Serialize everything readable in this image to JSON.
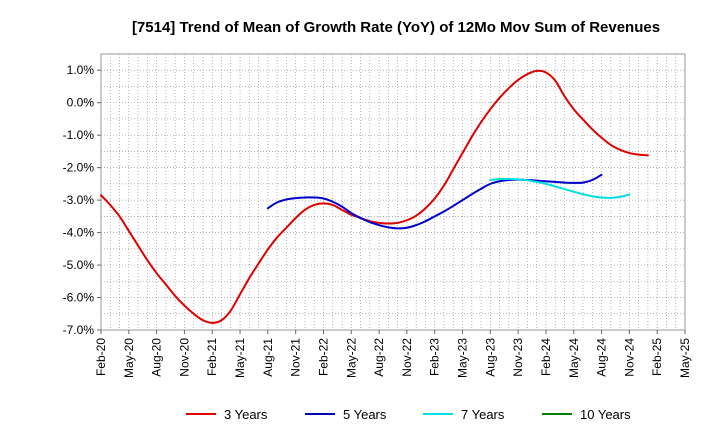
{
  "chart_data": {
    "type": "line",
    "title": "[7514]  Trend of Mean of Growth Rate (YoY) of 12Mo Mov Sum of Revenues",
    "xlabel": "",
    "ylabel": "",
    "ylim": [
      -7.0,
      1.5
    ],
    "yticks": [
      1.0,
      0.0,
      -1.0,
      -2.0,
      -3.0,
      -4.0,
      -5.0,
      -6.0,
      -7.0
    ],
    "ytick_labels": [
      "1.0%",
      "0.0%",
      "-1.0%",
      "-2.0%",
      "-3.0%",
      "-4.0%",
      "-5.0%",
      "-6.0%",
      "-7.0%"
    ],
    "x_start": "Feb-20",
    "x_range_months": 63,
    "xtick_labels": [
      "Feb-20",
      "May-20",
      "Aug-20",
      "Nov-20",
      "Feb-21",
      "May-21",
      "Aug-21",
      "Nov-21",
      "Feb-22",
      "May-22",
      "Aug-22",
      "Nov-22",
      "Feb-23",
      "May-23",
      "Aug-23",
      "Nov-23",
      "Feb-24",
      "May-24",
      "Aug-24",
      "Nov-24",
      "Feb-25",
      "May-25"
    ],
    "grid": true,
    "legend_position": "bottom",
    "series": [
      {
        "name": "3 Years",
        "color": "#e00000",
        "start_month_index": 0,
        "values": [
          -2.85,
          -3.15,
          -3.5,
          -3.95,
          -4.4,
          -4.85,
          -5.25,
          -5.6,
          -5.95,
          -6.25,
          -6.5,
          -6.7,
          -6.78,
          -6.7,
          -6.4,
          -5.9,
          -5.4,
          -4.95,
          -4.52,
          -4.15,
          -3.85,
          -3.55,
          -3.3,
          -3.15,
          -3.1,
          -3.15,
          -3.3,
          -3.45,
          -3.55,
          -3.65,
          -3.7,
          -3.72,
          -3.7,
          -3.62,
          -3.48,
          -3.25,
          -2.95,
          -2.55,
          -2.05,
          -1.55,
          -1.05,
          -0.6,
          -0.2,
          0.15,
          0.45,
          0.7,
          0.88,
          0.98,
          0.93,
          0.68,
          0.2,
          -0.2,
          -0.52,
          -0.82,
          -1.08,
          -1.3,
          -1.45,
          -1.55,
          -1.6,
          -1.62
        ]
      },
      {
        "name": "5 Years",
        "color": "#0000cc",
        "start_month_index": 18,
        "values": [
          -3.25,
          -3.07,
          -2.98,
          -2.94,
          -2.92,
          -2.92,
          -2.95,
          -3.05,
          -3.2,
          -3.4,
          -3.55,
          -3.68,
          -3.77,
          -3.84,
          -3.87,
          -3.85,
          -3.77,
          -3.65,
          -3.5,
          -3.35,
          -3.18,
          -3.0,
          -2.82,
          -2.65,
          -2.5,
          -2.42,
          -2.38,
          -2.37,
          -2.38,
          -2.4,
          -2.42,
          -2.44,
          -2.46,
          -2.47,
          -2.46,
          -2.38,
          -2.22
        ]
      },
      {
        "name": "7 Years",
        "color": "#00e0e0",
        "start_month_index": 42,
        "values": [
          -2.38,
          -2.35,
          -2.35,
          -2.36,
          -2.39,
          -2.44,
          -2.5,
          -2.58,
          -2.66,
          -2.74,
          -2.82,
          -2.88,
          -2.92,
          -2.93,
          -2.9,
          -2.83
        ]
      },
      {
        "name": "10 Years",
        "color": "#008000",
        "start_month_index": 0,
        "values": []
      }
    ]
  }
}
